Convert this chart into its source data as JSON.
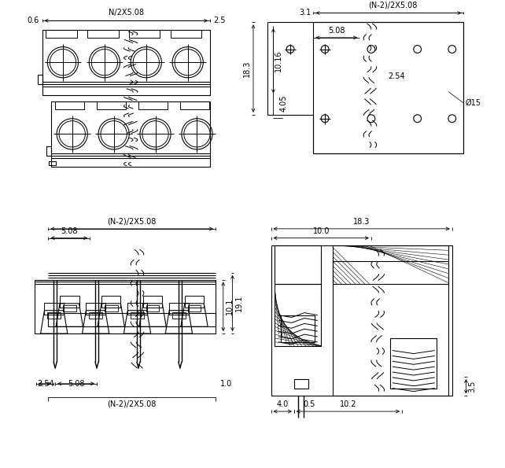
{
  "bg_color": "#ffffff",
  "lc": "#000000",
  "fs": 7.0,
  "lw": 0.8,
  "dims": {
    "tl_top": "N/2X5.08",
    "tl_left": "0.6",
    "tl_right": "2.5",
    "tr_top_a": "3.1",
    "tr_top_b": "(N-2)/2X5.08",
    "tr_inner": "5.08",
    "tr_h1": "18.3",
    "tr_h2": "10.16",
    "tr_h3": "4.05",
    "tr_inner2": "2.54",
    "tr_dia": "Ø15",
    "bl_top1": "(N-2)/2X5.08",
    "bl_top2": "5.08",
    "bl_r1": "19.1",
    "bl_r2": "10.1",
    "bl_bl": "2.54",
    "bl_bm": "5.08",
    "bl_br": "1.0",
    "bl_b2": "(N-2)/2X5.08",
    "br_top": "18.3",
    "br_mid": "10.0",
    "br_b1": "0.5",
    "br_b2": "4.0",
    "br_b3": "10.2",
    "br_r": "3.5"
  }
}
